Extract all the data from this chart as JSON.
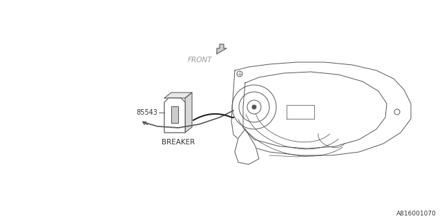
{
  "bg_color": "#ffffff",
  "line_color": "#555555",
  "text_color": "#333333",
  "gray_color": "#999999",
  "part_number": "85543",
  "part_label": "BREAKER",
  "front_label": "FRONT",
  "diagram_id": "A816001070",
  "fig_width": 6.4,
  "fig_height": 3.2,
  "dpi": 100
}
